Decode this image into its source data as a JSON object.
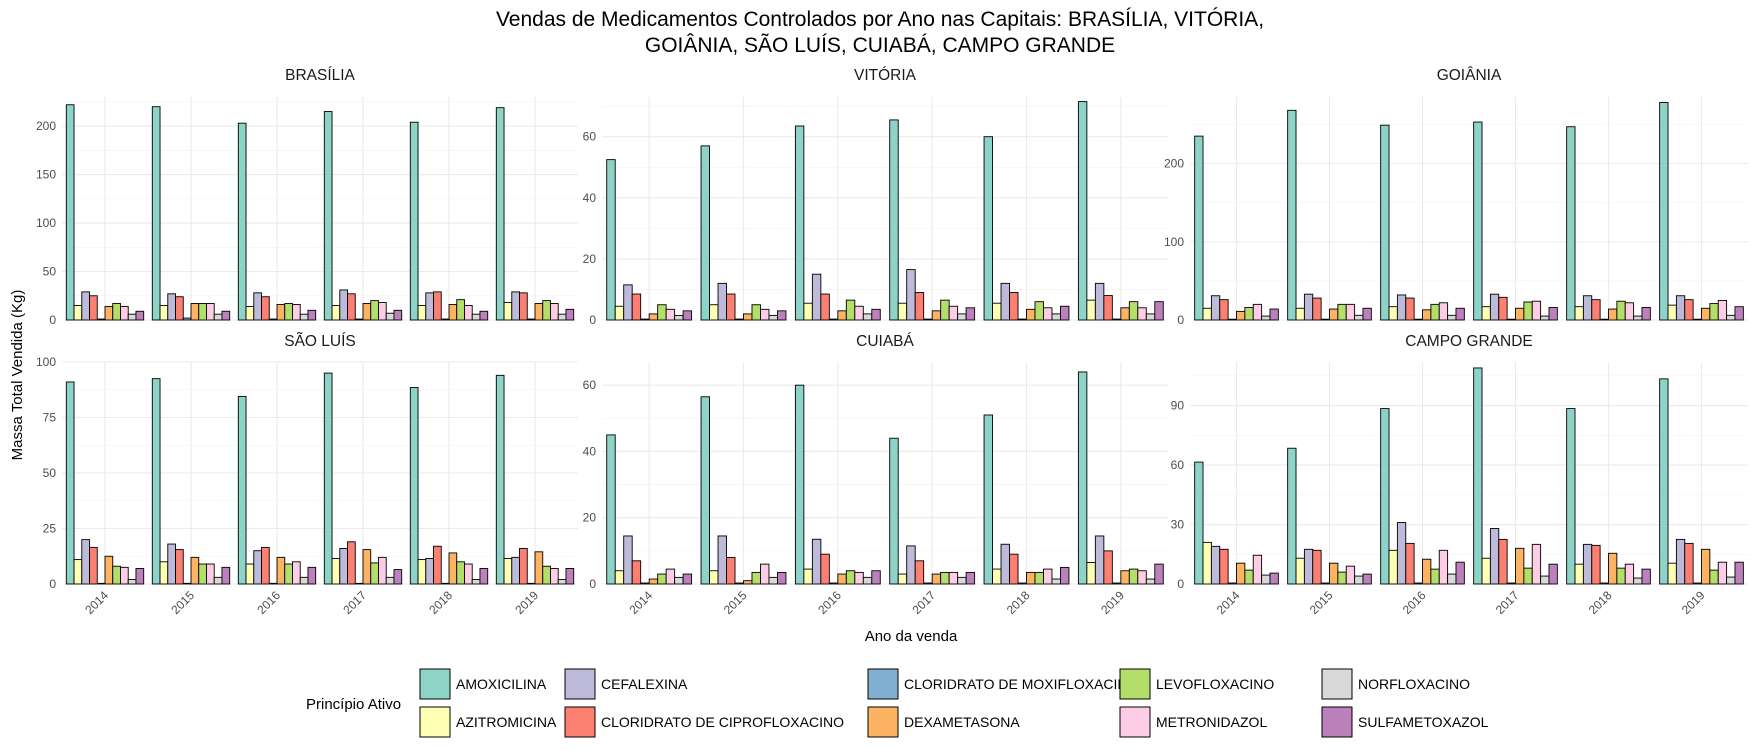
{
  "chart_data": {
    "type": "bar",
    "title_line1": "Vendas de Medicamentos Controlados por Ano nas Capitais: BRASÍLIA, VITÓRIA,",
    "title_line2": "GOIÂNIA, SÃO LUÍS, CUIABÁ, CAMPO GRANDE",
    "xlabel": "Ano da venda",
    "ylabel": "Massa Total Vendida (Kg)",
    "legend_title": "Princípio Ativo",
    "legend_position": "bottom",
    "grid": true,
    "categories": [
      "2014",
      "2015",
      "2016",
      "2017",
      "2018",
      "2019"
    ],
    "series_names": [
      "AMOXICILINA",
      "AZITROMICINA",
      "CEFALEXINA",
      "CLORIDRATO DE CIPROFLOXACINO",
      "CLORIDRATO DE MOXIFLOXACINO",
      "DEXAMETASONA",
      "LEVOFLOXACINO",
      "METRONIDAZOL",
      "NORFLOXACINO",
      "SULFAMETOXAZOL"
    ],
    "colors": [
      "#8DD3C7",
      "#FFFFB3",
      "#BEBADA",
      "#FB8072",
      "#80B1D3",
      "#FDB462",
      "#B3DE69",
      "#FCCDE5",
      "#D9D9D9",
      "#BC80BD"
    ],
    "panels": [
      {
        "name": "BRASÍLIA",
        "ylim": [
          0,
          230
        ],
        "yticks": [
          0,
          50,
          100,
          150,
          200
        ],
        "values": [
          [
            222,
            15,
            29,
            25,
            1,
            14,
            17,
            14,
            6,
            9
          ],
          [
            220,
            15,
            27,
            24,
            2,
            17,
            17,
            17,
            6,
            9
          ],
          [
            203,
            14,
            28,
            24,
            1,
            16,
            17,
            16,
            6,
            10
          ],
          [
            215,
            15,
            31,
            27,
            1,
            17,
            20,
            18,
            7,
            10
          ],
          [
            204,
            15,
            28,
            29,
            1,
            16,
            21,
            15,
            6,
            9
          ],
          [
            219,
            18,
            29,
            28,
            1,
            17,
            20,
            17,
            6,
            11
          ]
        ]
      },
      {
        "name": "VITÓRIA",
        "ylim": [
          0,
          73
        ],
        "yticks": [
          0,
          20,
          40,
          60
        ],
        "values": [
          [
            52.5,
            4.5,
            11.5,
            8.5,
            0.3,
            2,
            5,
            3.5,
            1.5,
            3
          ],
          [
            57,
            5,
            12,
            8.5,
            0.3,
            2,
            5,
            3.5,
            1.5,
            3
          ],
          [
            63.5,
            5.5,
            15,
            8.5,
            0.3,
            3,
            6.5,
            4.5,
            2,
            3.5
          ],
          [
            65.5,
            5.5,
            16.5,
            9,
            0.3,
            3,
            6.5,
            4.5,
            2,
            4
          ],
          [
            60,
            5.5,
            12,
            9,
            0.3,
            3.5,
            6,
            4,
            2,
            4.5
          ],
          [
            71.5,
            6.5,
            12,
            8,
            0.3,
            4,
            6,
            4,
            2,
            6
          ]
        ]
      },
      {
        "name": "GOIÂNIA",
        "ylim": [
          0,
          285
        ],
        "yticks": [
          0,
          100,
          200
        ],
        "values": [
          [
            235,
            15,
            31,
            26,
            1,
            11,
            16,
            20,
            5,
            14
          ],
          [
            268,
            15,
            33,
            28,
            1,
            14,
            20,
            20,
            6,
            15
          ],
          [
            249,
            17,
            32,
            28,
            1,
            13,
            20,
            22,
            6,
            15
          ],
          [
            253,
            17,
            33,
            29,
            1,
            15,
            23,
            24,
            5,
            16
          ],
          [
            247,
            17,
            31,
            26,
            1,
            14,
            24,
            22,
            5,
            16
          ],
          [
            278,
            19,
            31,
            26,
            1,
            15,
            21,
            25,
            6,
            17
          ]
        ]
      },
      {
        "name": "SÃO LUÍS",
        "ylim": [
          0,
          100
        ],
        "yticks": [
          0,
          25,
          50,
          75,
          100
        ],
        "values": [
          [
            91,
            11,
            20,
            16.5,
            0.3,
            12.5,
            8,
            7.5,
            2,
            7
          ],
          [
            92.5,
            10,
            18,
            15.5,
            0.3,
            12,
            9,
            9,
            3,
            7.5
          ],
          [
            84.5,
            9,
            15,
            16.5,
            0.3,
            12,
            9,
            10,
            3,
            7.5
          ],
          [
            95,
            11.5,
            16,
            19,
            0.3,
            15.5,
            9.5,
            12,
            3,
            6.5
          ],
          [
            88.5,
            11,
            11.5,
            17,
            0.3,
            14,
            10,
            9,
            2,
            7
          ],
          [
            94,
            11.5,
            12,
            16,
            0.3,
            14.5,
            8,
            7,
            2,
            7
          ]
        ]
      },
      {
        "name": "CUIABÁ",
        "ylim": [
          0,
          67
        ],
        "yticks": [
          0,
          20,
          40,
          60
        ],
        "values": [
          [
            45,
            4,
            14.5,
            7,
            0.3,
            1.5,
            3,
            4.5,
            2,
            3
          ],
          [
            56.5,
            4,
            14.5,
            8,
            0.3,
            1,
            3.5,
            6,
            2,
            3.5
          ],
          [
            60,
            4.5,
            13.5,
            9,
            0.3,
            3,
            4,
            3.5,
            2,
            4
          ],
          [
            44,
            3,
            11.5,
            7,
            0.3,
            3,
            3.5,
            3.5,
            2,
            3.5
          ],
          [
            51,
            4.5,
            12,
            9,
            0.3,
            3.5,
            3.5,
            4.5,
            1.5,
            5
          ],
          [
            64,
            6.5,
            14.5,
            10,
            0.3,
            4,
            4.5,
            4,
            1.5,
            6
          ]
        ]
      },
      {
        "name": "CAMPO GRANDE",
        "ylim": [
          0,
          112
        ],
        "yticks": [
          0,
          30,
          60,
          90
        ],
        "values": [
          [
            61.5,
            21,
            19,
            17.5,
            0.5,
            10.5,
            7,
            14.5,
            4.5,
            5.5
          ],
          [
            68.5,
            13,
            17.5,
            17,
            0.5,
            10.5,
            6,
            9,
            4,
            5
          ],
          [
            88.5,
            17,
            31,
            20.5,
            0.5,
            12.5,
            7.5,
            17,
            5,
            11
          ],
          [
            109,
            13,
            28,
            22.5,
            0.5,
            18,
            8,
            20,
            4,
            10
          ],
          [
            88.5,
            10,
            20,
            19.5,
            0.5,
            15.5,
            8,
            10,
            3,
            7.5
          ],
          [
            103.5,
            10.5,
            22.5,
            20.5,
            0.5,
            17.5,
            7,
            11,
            3.5,
            11
          ]
        ]
      }
    ]
  }
}
